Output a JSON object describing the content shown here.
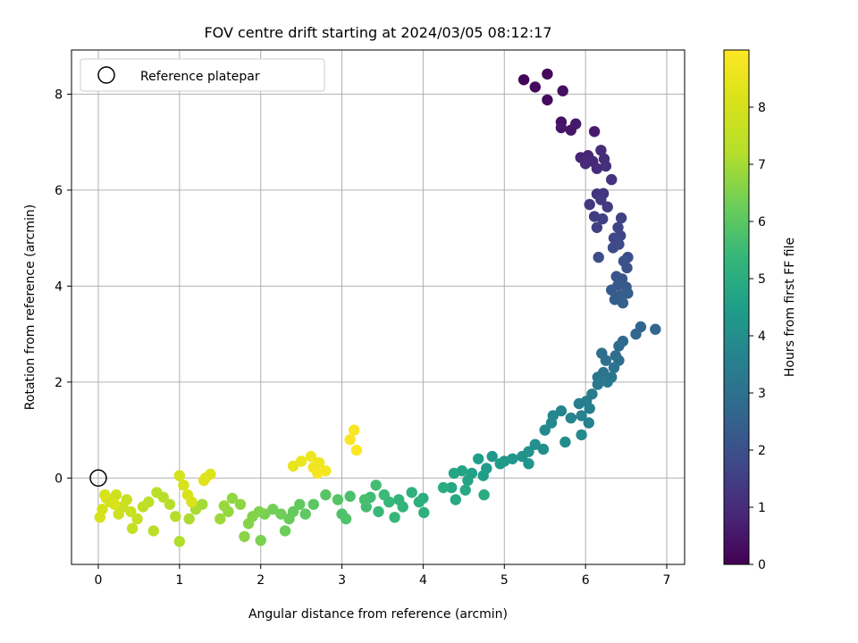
{
  "chart_data": {
    "type": "scatter",
    "title": "FOV centre drift starting at 2024/03/05 08:12:17",
    "xlabel": "Angular distance from reference (arcmin)",
    "ylabel": "Rotation from reference (arcmin)",
    "xlim": [
      -0.33,
      7.22
    ],
    "ylim": [
      -1.8,
      8.92
    ],
    "xticks": [
      "0",
      "1",
      "2",
      "3",
      "4",
      "5",
      "6",
      "7"
    ],
    "yticks": [
      "0",
      "2",
      "4",
      "6",
      "8"
    ],
    "grid": true,
    "legend": {
      "position": "top-left",
      "entries": [
        {
          "label": "Reference platepar",
          "marker": "open-circle"
        }
      ]
    },
    "reference_point": {
      "x": 0,
      "y": 0
    },
    "colorbar": {
      "label": "Hours from first FF file",
      "colormap": "viridis",
      "range": [
        0,
        9.0
      ],
      "ticks": [
        "0",
        "1",
        "2",
        "3",
        "4",
        "5",
        "6",
        "7",
        "8"
      ]
    },
    "series": [
      {
        "points": [
          [
            5.24,
            8.3,
            0.1
          ],
          [
            5.53,
            8.42,
            0.15
          ],
          [
            5.38,
            8.15,
            0.2
          ],
          [
            5.53,
            7.88,
            0.25
          ],
          [
            5.72,
            8.07,
            0.3
          ],
          [
            5.7,
            7.42,
            0.4
          ],
          [
            5.82,
            7.25,
            0.45
          ],
          [
            5.7,
            7.3,
            0.5
          ],
          [
            5.88,
            7.38,
            0.55
          ],
          [
            6.11,
            7.22,
            0.6
          ],
          [
            5.94,
            6.68,
            0.8
          ],
          [
            6.03,
            6.72,
            0.85
          ],
          [
            6.09,
            6.6,
            0.9
          ],
          [
            6.0,
            6.55,
            0.95
          ],
          [
            6.14,
            6.45,
            1.0
          ],
          [
            6.19,
            6.83,
            1.0
          ],
          [
            6.23,
            6.65,
            1.05
          ],
          [
            6.25,
            6.5,
            1.1
          ],
          [
            6.32,
            6.22,
            1.15
          ],
          [
            6.14,
            5.92,
            1.2
          ],
          [
            6.22,
            5.93,
            1.25
          ],
          [
            6.05,
            5.7,
            1.3
          ],
          [
            6.19,
            5.8,
            1.35
          ],
          [
            6.27,
            5.65,
            1.4
          ],
          [
            6.11,
            5.45,
            1.45
          ],
          [
            6.21,
            5.4,
            1.5
          ],
          [
            6.14,
            5.22,
            1.55
          ],
          [
            6.44,
            5.42,
            1.6
          ],
          [
            6.4,
            5.22,
            1.65
          ],
          [
            6.43,
            5.05,
            1.7
          ],
          [
            6.35,
            5.0,
            1.75
          ],
          [
            6.41,
            4.87,
            1.8
          ],
          [
            6.34,
            4.8,
            1.85
          ],
          [
            6.16,
            4.6,
            1.9
          ],
          [
            6.52,
            4.6,
            1.95
          ],
          [
            6.47,
            4.52,
            2.0
          ],
          [
            6.51,
            4.38,
            2.05
          ],
          [
            6.38,
            4.2,
            2.1
          ],
          [
            6.45,
            4.15,
            2.15
          ],
          [
            6.4,
            4.02,
            2.2
          ],
          [
            6.5,
            3.98,
            2.25
          ],
          [
            6.32,
            3.92,
            2.3
          ],
          [
            6.43,
            3.8,
            2.35
          ],
          [
            6.36,
            3.72,
            2.4
          ],
          [
            6.52,
            3.85,
            2.45
          ],
          [
            6.46,
            3.65,
            2.5
          ],
          [
            6.68,
            3.15,
            2.6
          ],
          [
            6.86,
            3.1,
            2.65
          ],
          [
            6.62,
            3.0,
            2.7
          ],
          [
            6.46,
            2.85,
            2.75
          ],
          [
            6.41,
            2.75,
            2.8
          ],
          [
            6.37,
            2.55,
            2.85
          ],
          [
            6.2,
            2.6,
            2.9
          ],
          [
            6.41,
            2.45,
            2.95
          ],
          [
            6.25,
            2.45,
            3.0
          ],
          [
            6.35,
            2.3,
            3.05
          ],
          [
            6.22,
            2.2,
            3.1
          ],
          [
            6.15,
            2.1,
            3.15
          ],
          [
            6.32,
            2.1,
            3.2
          ],
          [
            6.27,
            2.0,
            3.25
          ],
          [
            6.15,
            1.95,
            3.3
          ],
          [
            6.08,
            1.75,
            3.35
          ],
          [
            6.01,
            1.6,
            3.4
          ],
          [
            6.05,
            1.45,
            3.45
          ],
          [
            5.92,
            1.55,
            3.5
          ],
          [
            5.95,
            1.3,
            3.55
          ],
          [
            6.04,
            1.15,
            3.6
          ],
          [
            5.82,
            1.25,
            3.65
          ],
          [
            5.7,
            1.4,
            3.7
          ],
          [
            5.6,
            1.3,
            3.75
          ],
          [
            5.58,
            1.15,
            3.8
          ],
          [
            5.5,
            1.0,
            3.85
          ],
          [
            5.95,
            0.9,
            3.9
          ],
          [
            5.75,
            0.75,
            3.95
          ],
          [
            5.48,
            0.6,
            4.0
          ],
          [
            5.38,
            0.7,
            4.05
          ],
          [
            5.3,
            0.55,
            4.1
          ],
          [
            5.22,
            0.45,
            4.15
          ],
          [
            5.3,
            0.3,
            4.2
          ],
          [
            5.1,
            0.4,
            4.25
          ],
          [
            5.0,
            0.35,
            4.3
          ],
          [
            4.85,
            0.45,
            4.35
          ],
          [
            4.95,
            0.3,
            4.4
          ],
          [
            4.78,
            0.2,
            4.45
          ],
          [
            4.68,
            0.4,
            4.5
          ],
          [
            4.74,
            0.05,
            4.55
          ],
          [
            4.6,
            0.1,
            4.6
          ],
          [
            4.55,
            -0.05,
            4.65
          ],
          [
            4.48,
            0.15,
            4.7
          ],
          [
            4.38,
            0.1,
            4.75
          ],
          [
            4.35,
            -0.2,
            4.8
          ],
          [
            4.52,
            -0.25,
            4.85
          ],
          [
            4.4,
            -0.45,
            4.9
          ],
          [
            4.75,
            -0.35,
            4.95
          ],
          [
            4.25,
            -0.2,
            5.0
          ],
          [
            4.0,
            -0.42,
            5.05
          ],
          [
            3.95,
            -0.5,
            5.1
          ],
          [
            4.01,
            -0.72,
            5.15
          ],
          [
            3.86,
            -0.3,
            5.2
          ],
          [
            3.7,
            -0.45,
            5.25
          ],
          [
            3.75,
            -0.6,
            5.3
          ],
          [
            3.65,
            -0.82,
            5.35
          ],
          [
            3.58,
            -0.5,
            5.4
          ],
          [
            3.45,
            -0.7,
            5.45
          ],
          [
            3.52,
            -0.35,
            5.5
          ],
          [
            3.35,
            -0.4,
            5.55
          ],
          [
            3.42,
            -0.15,
            5.6
          ],
          [
            3.3,
            -0.6,
            5.65
          ],
          [
            3.28,
            -0.45,
            5.7
          ],
          [
            3.1,
            -0.38,
            5.75
          ],
          [
            3.0,
            -0.75,
            5.8
          ],
          [
            3.05,
            -0.85,
            5.85
          ],
          [
            2.95,
            -0.45,
            5.9
          ],
          [
            2.8,
            -0.35,
            5.95
          ],
          [
            2.65,
            -0.55,
            6.0
          ],
          [
            2.55,
            -0.75,
            6.05
          ],
          [
            2.48,
            -0.55,
            6.1
          ],
          [
            2.4,
            -0.7,
            6.15
          ],
          [
            2.35,
            -0.85,
            6.2
          ],
          [
            2.3,
            -1.1,
            6.25
          ],
          [
            2.25,
            -0.75,
            6.3
          ],
          [
            2.15,
            -0.65,
            6.35
          ],
          [
            2.05,
            -0.75,
            6.4
          ],
          [
            2.0,
            -1.3,
            6.45
          ],
          [
            1.98,
            -0.7,
            6.5
          ],
          [
            1.9,
            -0.8,
            6.55
          ],
          [
            1.85,
            -0.95,
            6.6
          ],
          [
            1.8,
            -1.22,
            6.65
          ],
          [
            1.75,
            -0.55,
            6.7
          ],
          [
            1.65,
            -0.42,
            6.75
          ],
          [
            1.6,
            -0.7,
            6.8
          ],
          [
            1.55,
            -0.58,
            6.85
          ],
          [
            1.5,
            -0.85,
            6.9
          ],
          [
            1.28,
            -0.55,
            7.0
          ],
          [
            1.2,
            -0.65,
            7.05
          ],
          [
            1.12,
            -0.85,
            7.1
          ],
          [
            1.0,
            -1.32,
            7.15
          ],
          [
            0.95,
            -0.8,
            7.2
          ],
          [
            0.88,
            -0.55,
            7.25
          ],
          [
            0.8,
            -0.4,
            7.3
          ],
          [
            0.72,
            -0.3,
            7.35
          ],
          [
            0.68,
            -1.1,
            7.4
          ],
          [
            0.62,
            -0.5,
            7.45
          ],
          [
            0.55,
            -0.6,
            7.5
          ],
          [
            0.48,
            -0.85,
            7.55
          ],
          [
            0.42,
            -1.05,
            7.6
          ],
          [
            0.4,
            -0.7,
            7.65
          ],
          [
            0.35,
            -0.45,
            7.7
          ],
          [
            0.3,
            -0.6,
            7.75
          ],
          [
            0.25,
            -0.75,
            7.8
          ],
          [
            0.22,
            -0.35,
            7.85
          ],
          [
            0.15,
            -0.5,
            7.9
          ],
          [
            0.1,
            -0.42,
            7.95
          ],
          [
            0.05,
            -0.65,
            8.0
          ],
          [
            0.02,
            -0.82,
            8.05
          ],
          [
            0.08,
            -0.35,
            8.1
          ],
          [
            0.2,
            -0.55,
            8.15
          ],
          [
            1.0,
            0.05,
            8.0
          ],
          [
            1.05,
            -0.15,
            8.05
          ],
          [
            1.1,
            -0.35,
            8.1
          ],
          [
            1.15,
            -0.5,
            8.15
          ],
          [
            1.32,
            0.0,
            8.2
          ],
          [
            1.38,
            0.08,
            8.25
          ],
          [
            1.3,
            -0.05,
            8.3
          ],
          [
            2.4,
            0.25,
            8.5
          ],
          [
            2.5,
            0.35,
            8.55
          ],
          [
            2.62,
            0.45,
            8.6
          ],
          [
            2.72,
            0.32,
            8.65
          ],
          [
            2.65,
            0.22,
            8.7
          ],
          [
            2.8,
            0.15,
            8.75
          ],
          [
            2.7,
            0.1,
            8.8
          ],
          [
            3.15,
            1.0,
            8.85
          ],
          [
            3.1,
            0.8,
            8.9
          ],
          [
            3.18,
            0.58,
            8.95
          ]
        ]
      }
    ]
  }
}
